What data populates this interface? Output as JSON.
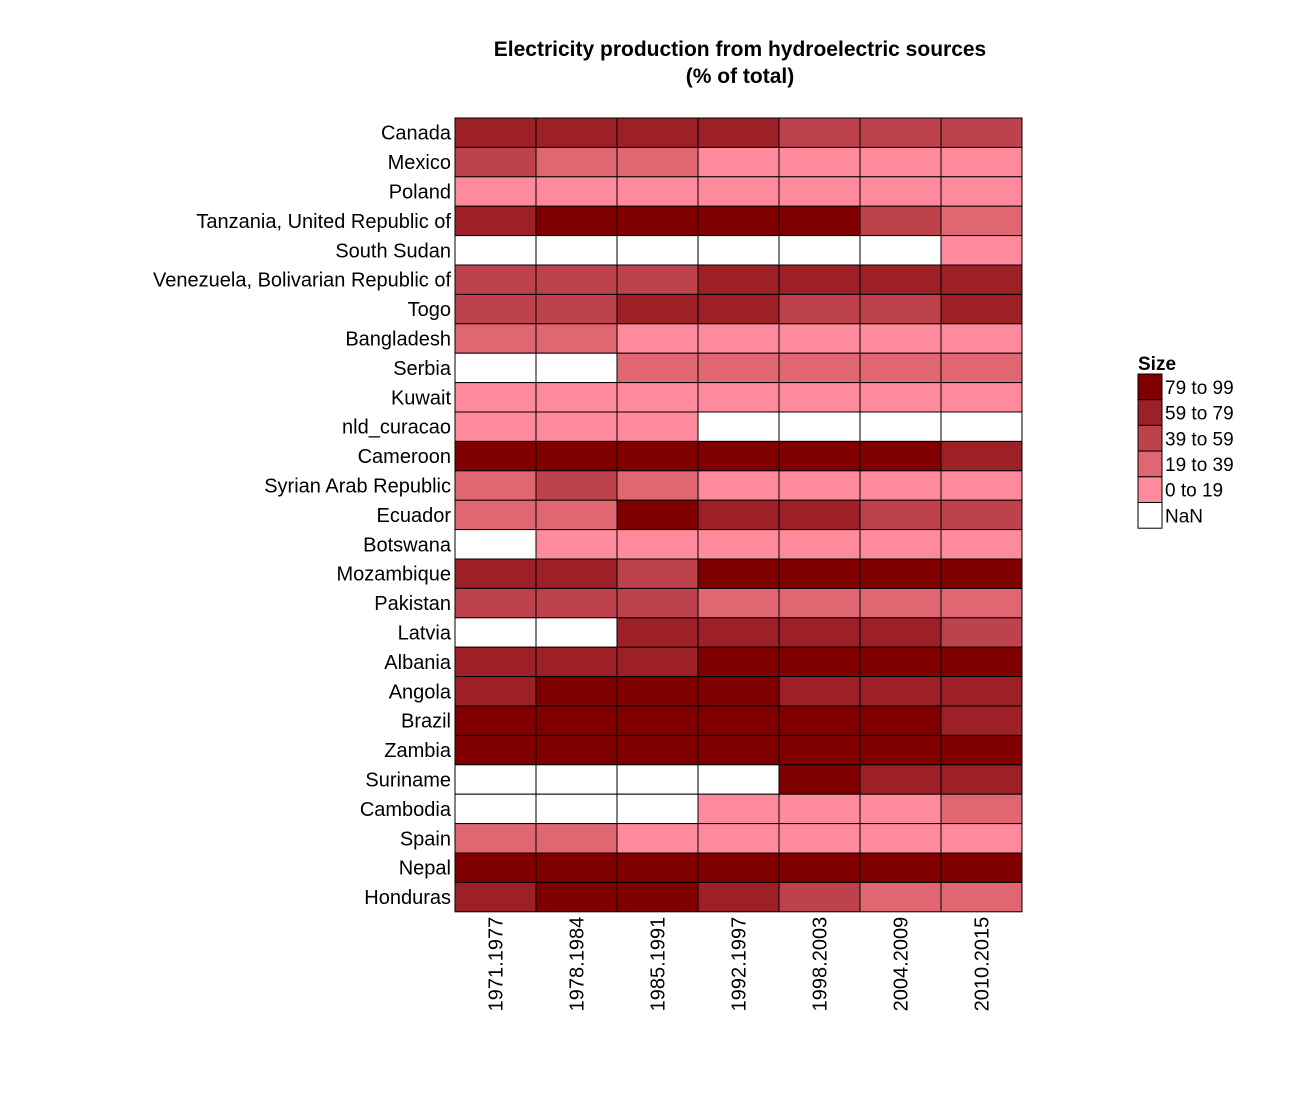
{
  "chart_data": {
    "type": "heatmap",
    "title_line1": "Electricity production from hydroelectric sources",
    "title_line2": "(% of total)",
    "x_categories": [
      "1971.1977",
      "1978.1984",
      "1985.1991",
      "1992.1997",
      "1998.2003",
      "2004.2009",
      "2010.2015"
    ],
    "y_categories": [
      "Canada",
      "Mexico",
      "Poland",
      "Tanzania, United Republic of",
      "South Sudan",
      "Venezuela, Bolivarian Republic of",
      "Togo",
      "Bangladesh",
      "Serbia",
      "Kuwait",
      "nld_curacao",
      "Cameroon",
      "Syrian Arab Republic",
      "Ecuador",
      "Botswana",
      "Mozambique",
      "Pakistan",
      "Latvia",
      "Albania",
      "Angola",
      "Brazil",
      "Zambia",
      "Suriname",
      "Cambodia",
      "Spain",
      "Nepal",
      "Honduras"
    ],
    "bins": [
      "79 to 99",
      "59 to 79",
      "39 to 59",
      "19 to 39",
      "0 to 19",
      "NaN"
    ],
    "bin_colors": [
      "#800000",
      "#9d2027",
      "#be424c",
      "#e06772",
      "#ff8a9c",
      "#ffffff"
    ],
    "cells": [
      [
        "59 to 79",
        "59 to 79",
        "59 to 79",
        "59 to 79",
        "39 to 59",
        "39 to 59",
        "39 to 59"
      ],
      [
        "39 to 59",
        "19 to 39",
        "19 to 39",
        "0 to 19",
        "0 to 19",
        "0 to 19",
        "0 to 19"
      ],
      [
        "0 to 19",
        "0 to 19",
        "0 to 19",
        "0 to 19",
        "0 to 19",
        "0 to 19",
        "0 to 19"
      ],
      [
        "59 to 79",
        "79 to 99",
        "79 to 99",
        "79 to 99",
        "79 to 99",
        "39 to 59",
        "19 to 39"
      ],
      [
        "NaN",
        "NaN",
        "NaN",
        "NaN",
        "NaN",
        "NaN",
        "0 to 19"
      ],
      [
        "39 to 59",
        "39 to 59",
        "39 to 59",
        "59 to 79",
        "59 to 79",
        "59 to 79",
        "59 to 79"
      ],
      [
        "39 to 59",
        "39 to 59",
        "59 to 79",
        "59 to 79",
        "39 to 59",
        "39 to 59",
        "59 to 79"
      ],
      [
        "19 to 39",
        "19 to 39",
        "0 to 19",
        "0 to 19",
        "0 to 19",
        "0 to 19",
        "0 to 19"
      ],
      [
        "NaN",
        "NaN",
        "19 to 39",
        "19 to 39",
        "19 to 39",
        "19 to 39",
        "19 to 39"
      ],
      [
        "0 to 19",
        "0 to 19",
        "0 to 19",
        "0 to 19",
        "0 to 19",
        "0 to 19",
        "0 to 19"
      ],
      [
        "0 to 19",
        "0 to 19",
        "0 to 19",
        "NaN",
        "NaN",
        "NaN",
        "NaN"
      ],
      [
        "79 to 99",
        "79 to 99",
        "79 to 99",
        "79 to 99",
        "79 to 99",
        "79 to 99",
        "59 to 79"
      ],
      [
        "19 to 39",
        "39 to 59",
        "19 to 39",
        "0 to 19",
        "0 to 19",
        "0 to 19",
        "0 to 19"
      ],
      [
        "19 to 39",
        "19 to 39",
        "79 to 99",
        "59 to 79",
        "59 to 79",
        "39 to 59",
        "39 to 59"
      ],
      [
        "NaN",
        "0 to 19",
        "0 to 19",
        "0 to 19",
        "0 to 19",
        "0 to 19",
        "0 to 19"
      ],
      [
        "59 to 79",
        "59 to 79",
        "39 to 59",
        "79 to 99",
        "79 to 99",
        "79 to 99",
        "79 to 99"
      ],
      [
        "39 to 59",
        "39 to 59",
        "39 to 59",
        "19 to 39",
        "19 to 39",
        "19 to 39",
        "19 to 39"
      ],
      [
        "NaN",
        "NaN",
        "59 to 79",
        "59 to 79",
        "59 to 79",
        "59 to 79",
        "39 to 59"
      ],
      [
        "59 to 79",
        "59 to 79",
        "59 to 79",
        "79 to 99",
        "79 to 99",
        "79 to 99",
        "79 to 99"
      ],
      [
        "59 to 79",
        "79 to 99",
        "79 to 99",
        "79 to 99",
        "59 to 79",
        "59 to 79",
        "59 to 79"
      ],
      [
        "79 to 99",
        "79 to 99",
        "79 to 99",
        "79 to 99",
        "79 to 99",
        "79 to 99",
        "59 to 79"
      ],
      [
        "79 to 99",
        "79 to 99",
        "79 to 99",
        "79 to 99",
        "79 to 99",
        "79 to 99",
        "79 to 99"
      ],
      [
        "NaN",
        "NaN",
        "NaN",
        "NaN",
        "79 to 99",
        "59 to 79",
        "59 to 79"
      ],
      [
        "NaN",
        "NaN",
        "NaN",
        "0 to 19",
        "0 to 19",
        "0 to 19",
        "19 to 39"
      ],
      [
        "19 to 39",
        "19 to 39",
        "0 to 19",
        "0 to 19",
        "0 to 19",
        "0 to 19",
        "0 to 19"
      ],
      [
        "79 to 99",
        "79 to 99",
        "79 to 99",
        "79 to 99",
        "79 to 99",
        "79 to 99",
        "79 to 99"
      ],
      [
        "59 to 79",
        "79 to 99",
        "79 to 99",
        "59 to 79",
        "39 to 59",
        "19 to 39",
        "19 to 39"
      ]
    ],
    "legend": {
      "title": "Size",
      "position": "right"
    },
    "grid": false
  }
}
